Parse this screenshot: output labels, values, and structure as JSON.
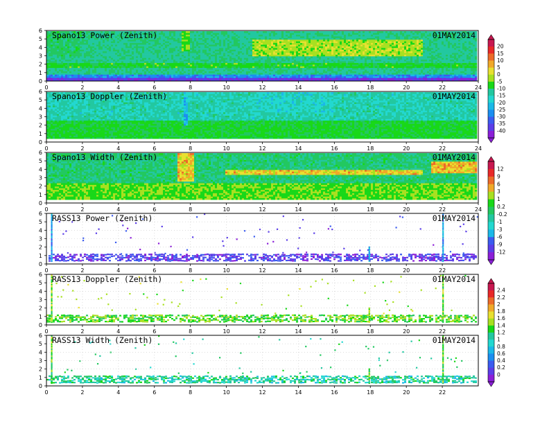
{
  "palette": [
    "#8b1fd8",
    "#5b3ee8",
    "#3b5cf0",
    "#1b8ef0",
    "#1bb8e8",
    "#22d8d0",
    "#22c8a0",
    "#22c860",
    "#18d818",
    "#a8e020",
    "#e8e030",
    "#f0a828",
    "#ec6a28",
    "#e82828",
    "#c81850"
  ],
  "chart_data": [
    {
      "type": "heatmap",
      "title": "Spano13  Power  (Zenith)",
      "date": "01MAY2014",
      "x_ticks": [
        "0",
        "2",
        "4",
        "6",
        "8",
        "10",
        "12",
        "14",
        "16",
        "18",
        "20",
        "22",
        "24"
      ],
      "y_ticks": [
        "0",
        "1",
        "2",
        "3",
        "4",
        "5",
        "6"
      ],
      "xlim": [
        0,
        24
      ],
      "ylim": [
        0,
        6
      ],
      "colorbar_group": 0
    },
    {
      "type": "heatmap",
      "title": "Spano13  Doppler  (Zenith)",
      "date": "01MAY2014",
      "x_ticks": [
        "0",
        "2",
        "4",
        "6",
        "8",
        "10",
        "12",
        "14",
        "16",
        "18",
        "20",
        "22",
        "24"
      ],
      "y_ticks": [
        "0",
        "1",
        "2",
        "3",
        "4",
        "5",
        "6"
      ],
      "xlim": [
        0,
        24
      ],
      "ylim": [
        0,
        6
      ],
      "colorbar_group": 0
    },
    {
      "type": "heatmap",
      "title": "Spano13  Width  (Zenith)",
      "date": "01MAY2014",
      "x_ticks": [
        "0",
        "2",
        "4",
        "6",
        "8",
        "10",
        "12",
        "14",
        "16",
        "18",
        "20",
        "22",
        "24"
      ],
      "y_ticks": [
        "0",
        "1",
        "2",
        "3",
        "4",
        "5",
        "6"
      ],
      "xlim": [
        0,
        24
      ],
      "ylim": [
        0,
        6
      ],
      "colorbar_group": 1
    },
    {
      "type": "heatmap",
      "title": "RASS13  Power  (Zenith)",
      "date": "01MAY2014",
      "x_ticks": [
        "0",
        "2",
        "4",
        "6",
        "8",
        "10",
        "12",
        "14",
        "16",
        "18",
        "20",
        "22"
      ],
      "y_ticks": [
        "0",
        "1",
        "2",
        "3",
        "4",
        "5",
        "6"
      ],
      "xlim": [
        0,
        24
      ],
      "ylim": [
        0,
        6
      ],
      "colorbar_group": 1
    },
    {
      "type": "heatmap",
      "title": "RASS13  Doppler  (Zenith)",
      "date": "01MAY2014",
      "x_ticks": [
        "0",
        "2",
        "4",
        "6",
        "8",
        "10",
        "12",
        "14",
        "16",
        "18",
        "20",
        "22"
      ],
      "y_ticks": [
        "0",
        "1",
        "2",
        "3",
        "4",
        "5",
        "6"
      ],
      "xlim": [
        0,
        24
      ],
      "ylim": [
        0,
        6
      ],
      "colorbar_group": 2
    },
    {
      "type": "heatmap",
      "title": "RASS13  Width  (Zenith)",
      "date": "01MAY2014",
      "x_ticks": [
        "0",
        "2",
        "4",
        "6",
        "8",
        "10",
        "12",
        "14",
        "16",
        "18",
        "20",
        "22"
      ],
      "y_ticks": [
        "0",
        "1",
        "2",
        "3",
        "4",
        "5",
        "6"
      ],
      "xlim": [
        0,
        24
      ],
      "ylim": [
        0,
        6
      ],
      "colorbar_group": 2
    }
  ],
  "colorbars": [
    {
      "labels": [
        "20",
        "15",
        "10",
        "5",
        "0",
        "-5",
        "-10",
        "-15",
        "-20",
        "-25",
        "-30",
        "-35",
        "-40"
      ]
    },
    {
      "labels": [
        "12",
        "9",
        "6",
        "3",
        "1",
        "0.2",
        "-0.2",
        "-1",
        "-3",
        "-6",
        "-9",
        "-12"
      ]
    },
    {
      "labels": [
        "2.4",
        "2.2",
        "2",
        "1.8",
        "1.6",
        "1.4",
        "1.2",
        "1",
        "0.8",
        "0.6",
        "0.4",
        "0.2",
        "0"
      ]
    }
  ]
}
